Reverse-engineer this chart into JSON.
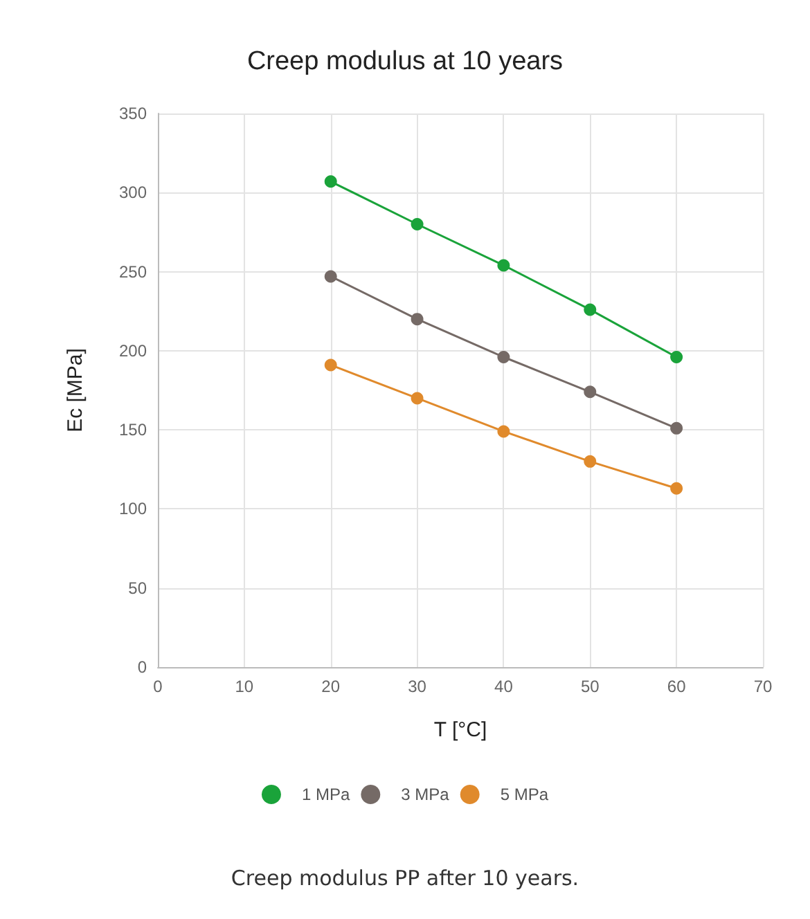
{
  "chart_data": {
    "type": "line",
    "title": "Creep modulus at 10 years",
    "xlabel": "T [°C]",
    "ylabel": "Ec [MPa]",
    "x": [
      20,
      30,
      40,
      50,
      60
    ],
    "series": [
      {
        "name": "1 MPa",
        "color": "#1aa33a",
        "values": [
          307,
          280,
          254,
          226,
          196
        ]
      },
      {
        "name": "3 MPa",
        "color": "#756a66",
        "values": [
          247,
          220,
          196,
          174,
          151
        ]
      },
      {
        "name": "5 MPa",
        "color": "#e08a2c",
        "values": [
          191,
          170,
          149,
          130,
          113
        ]
      }
    ],
    "xlim": [
      0,
      70
    ],
    "xticks": [
      0,
      10,
      20,
      30,
      40,
      50,
      60,
      70
    ],
    "ylim": [
      0,
      350
    ],
    "yticks": [
      0,
      50,
      100,
      150,
      200,
      250,
      300,
      350
    ],
    "grid": true,
    "legend": "bottom",
    "marker": "circle",
    "line_style": "solid",
    "annotations": [
      "Creep modulus PP after 10 years."
    ]
  }
}
